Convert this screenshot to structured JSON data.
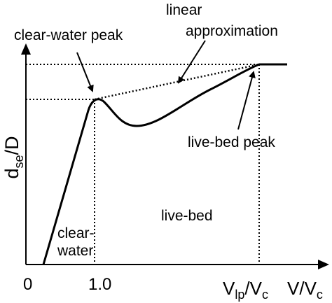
{
  "labels": {
    "clear_water_peak": "clear-water peak",
    "linear_line1": "linear",
    "linear_line2": "approximation",
    "live_bed_peak": "live-bed peak",
    "live_bed": "live-bed",
    "clear_line1": "clear-",
    "clear_line2": "water",
    "y_axis_main": "d",
    "y_axis_sub": "se",
    "y_axis_tail": "/D",
    "origin": "0",
    "tick_1": "1.0",
    "x_vlp_main": "V",
    "x_vlp_sub": "lp",
    "x_vlp_mid": "/V",
    "x_vlp_sub2": "c",
    "x_axis_main": "V/V",
    "x_axis_sub": "c"
  }
}
